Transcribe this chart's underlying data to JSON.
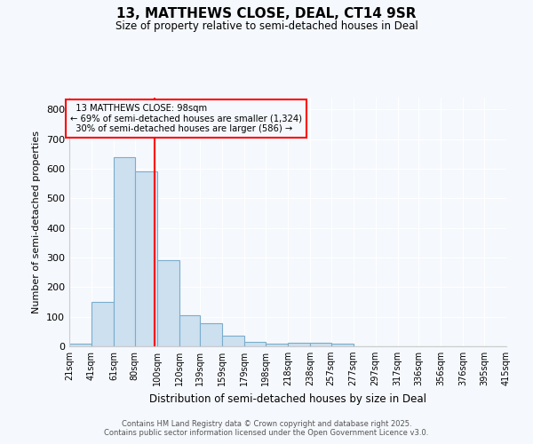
{
  "title": "13, MATTHEWS CLOSE, DEAL, CT14 9SR",
  "subtitle": "Size of property relative to semi-detached houses in Deal",
  "xlabel": "Distribution of semi-detached houses by size in Deal",
  "ylabel": "Number of semi-detached properties",
  "bin_edges": [
    21,
    41,
    61,
    80,
    100,
    120,
    139,
    159,
    179,
    198,
    218,
    238,
    257,
    277,
    297,
    317,
    336,
    356,
    376,
    395,
    415
  ],
  "bar_values": [
    10,
    150,
    640,
    590,
    290,
    105,
    78,
    37,
    15,
    10,
    13,
    13,
    9,
    0,
    0,
    0,
    0,
    0,
    0,
    0
  ],
  "bar_color": "#cce0f0",
  "bar_edge_color": "#7aadcc",
  "property_value": 98,
  "property_label": "13 MATTHEWS CLOSE: 98sqm",
  "smaller_pct": 69,
  "smaller_count": 1324,
  "larger_pct": 30,
  "larger_count": 586,
  "vline_color": "red",
  "ylim": [
    0,
    840
  ],
  "yticks": [
    0,
    100,
    200,
    300,
    400,
    500,
    600,
    700,
    800
  ],
  "footnote1": "Contains HM Land Registry data © Crown copyright and database right 2025.",
  "footnote2": "Contains public sector information licensed under the Open Government Licence v3.0.",
  "background_color": "#f5f8fc",
  "plot_bg_color": "#f5f8fc",
  "grid_color": "white"
}
